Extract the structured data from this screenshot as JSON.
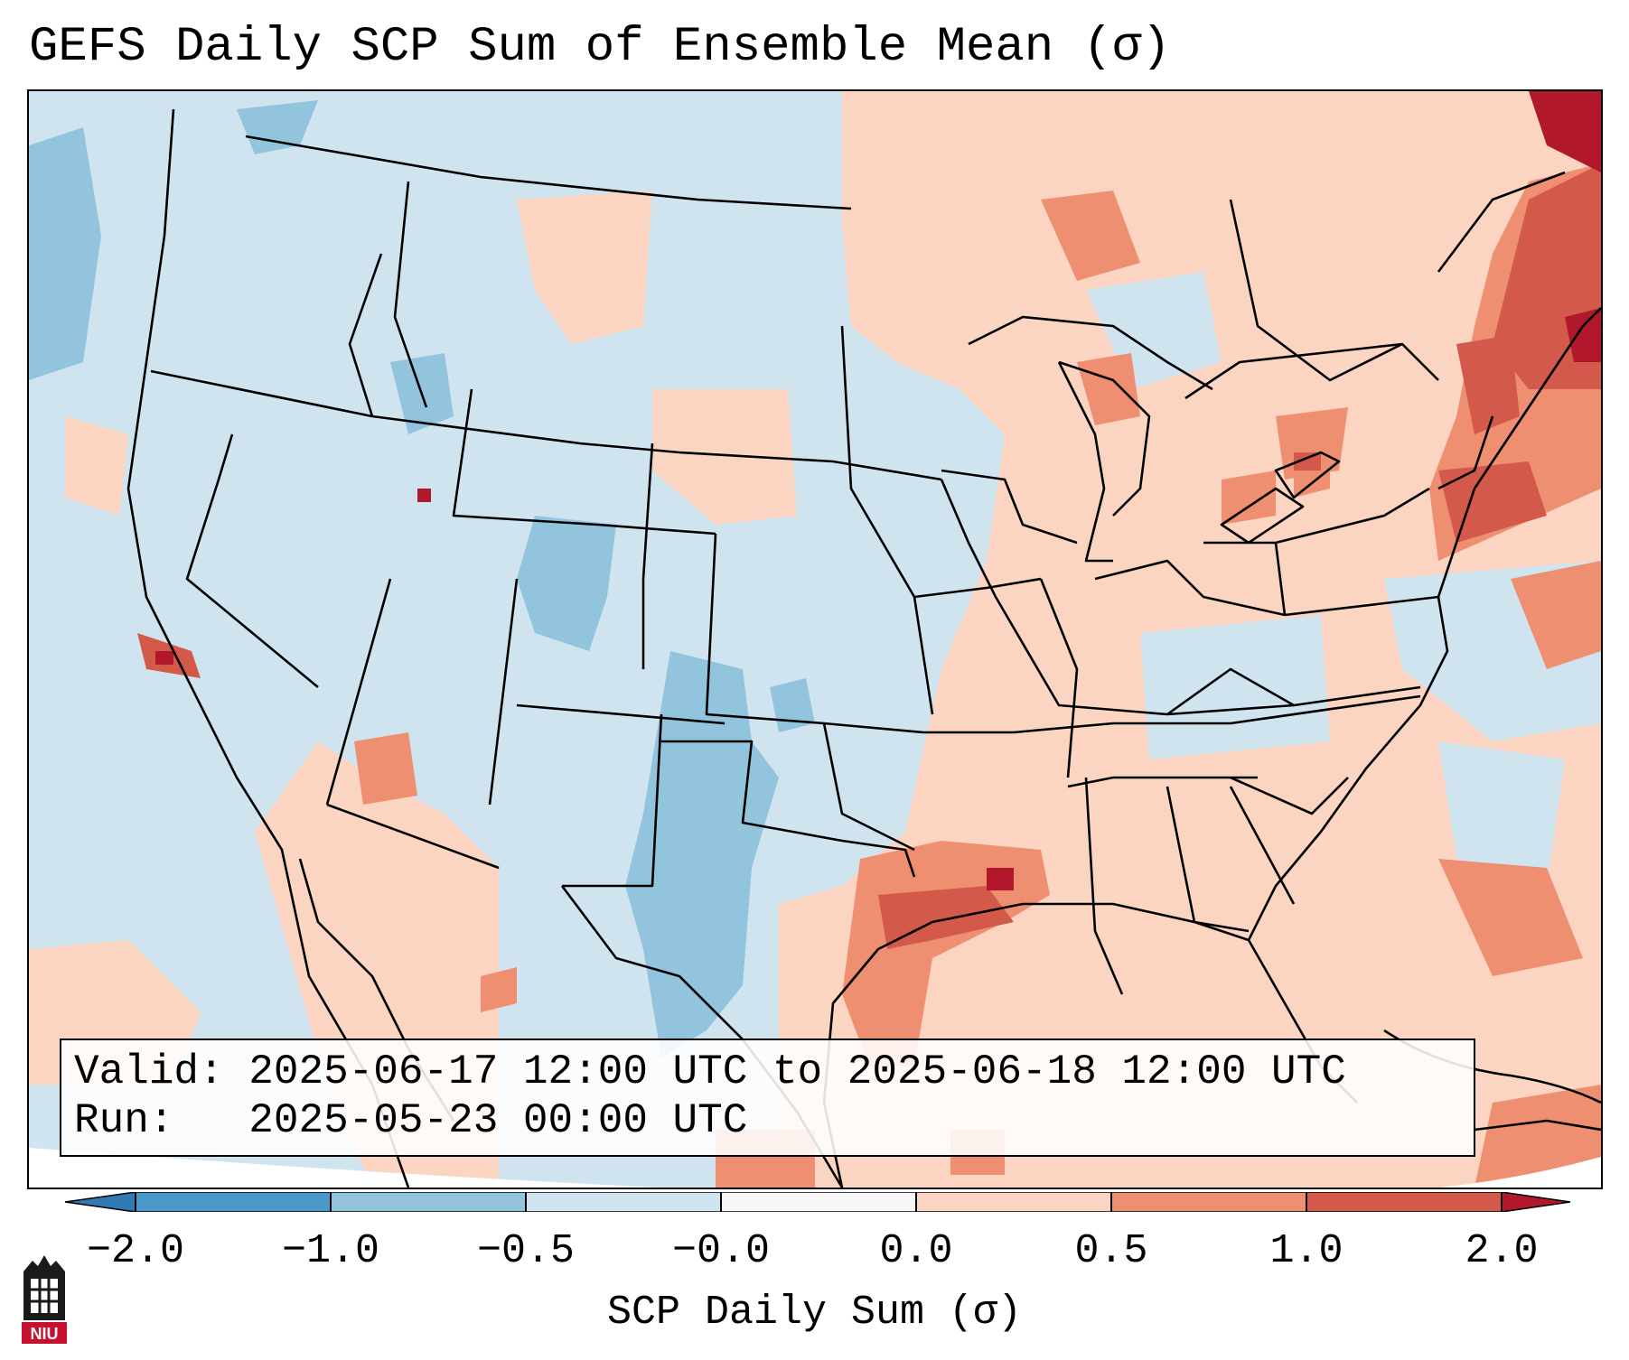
{
  "title": "GEFS Daily SCP Sum of Ensemble Mean (σ)",
  "info": {
    "valid_label": "Valid:",
    "valid_value": "2025-06-17 12:00 UTC to 2025-06-18 12:00 UTC",
    "run_label": "Run:",
    "run_value": "2025-05-23 00:00 UTC"
  },
  "colorbar": {
    "title": "SCP Daily Sum (σ)",
    "tick_labels": [
      "−2.0",
      "−1.0",
      "−0.5",
      "−0.0",
      "0.0",
      "0.5",
      "1.0",
      "2.0"
    ],
    "colors": {
      "below": "#2f79b5",
      "bin_m2_m1": "#4a98c9",
      "bin_m1_m05": "#93c4de",
      "bin_m05_0": "#d0e4f0",
      "bin_0_0": "#f7f7f7",
      "bin_0_05": "#fbd4c2",
      "bin_05_1": "#ee8f71",
      "bin_1_2": "#d35a4a",
      "above": "#b2182b"
    }
  },
  "logo": {
    "text": "NIU",
    "icon": "niu-logo-icon"
  }
}
